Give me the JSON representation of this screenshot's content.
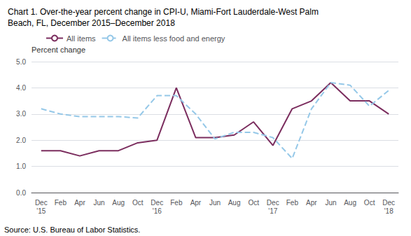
{
  "chart_data": {
    "type": "line",
    "title": "Chart 1. Over-the-year percent change in CPI-U, Miami-Fort Lauderdale-West Palm\nBeach, FL, December 2015–December 2018",
    "ylabel": "Percent change",
    "annotations": [
      "Source: U.S. Bureau of Labor Statistics."
    ],
    "categories": [
      "Dec\n'15",
      "Feb",
      "Apr",
      "Jun",
      "Aug",
      "Oct",
      "Dec\n'16",
      "Feb",
      "Apr",
      "Jun",
      "Aug",
      "Oct",
      "Dec\n'17",
      "Feb",
      "Apr",
      "Jun",
      "Aug",
      "Oct",
      "Dec\n'18"
    ],
    "series": [
      {
        "name": "All items",
        "color": "#7B2D5E",
        "line_style": "solid",
        "values": [
          1.6,
          1.6,
          1.4,
          1.6,
          1.6,
          1.9,
          2.0,
          4.0,
          2.1,
          2.1,
          2.2,
          2.7,
          1.8,
          3.2,
          3.5,
          4.2,
          3.5,
          3.5,
          3.0
        ]
      },
      {
        "name": "All items less food and energy",
        "color": "#95C8E8",
        "line_style": "dashed",
        "values": [
          3.2,
          3.0,
          2.9,
          2.9,
          2.9,
          2.85,
          3.7,
          3.7,
          3.0,
          2.05,
          2.3,
          2.3,
          2.1,
          1.3,
          3.2,
          4.2,
          4.1,
          3.3,
          3.9
        ]
      }
    ],
    "ylim": [
      0.0,
      5.0
    ],
    "yticks": [
      {
        "value": 0,
        "label": "0.0"
      },
      {
        "value": 1,
        "label": "1.0"
      },
      {
        "value": 2,
        "label": "2.0"
      },
      {
        "value": 3,
        "label": "3.0"
      },
      {
        "value": 4,
        "label": "4.0"
      },
      {
        "value": 5,
        "label": "5.0"
      }
    ],
    "grid": true,
    "legend": "upper left"
  }
}
